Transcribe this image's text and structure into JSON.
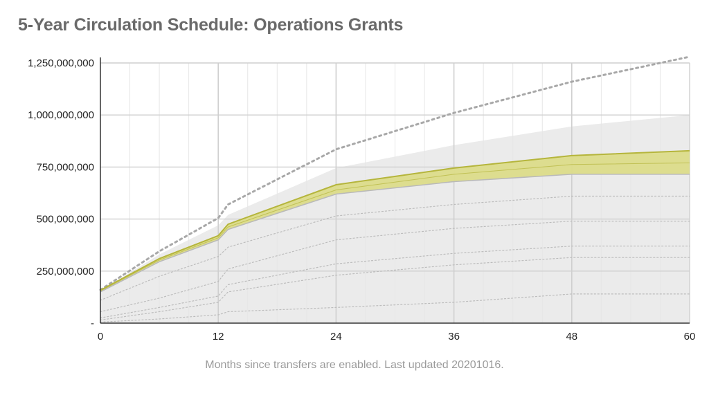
{
  "chart_data": {
    "type": "area",
    "title": "5-Year Circulation Schedule: Operations Grants",
    "xlabel": "Months since transfers are enabled. Last updated 20201016.",
    "ylabel": "",
    "xlim": [
      0,
      60
    ],
    "ylim": [
      0,
      1250000000
    ],
    "x_ticks": [
      0,
      12,
      24,
      36,
      48,
      60
    ],
    "x_tick_labels": [
      "0",
      "12",
      "24",
      "36",
      "48",
      "60"
    ],
    "y_ticks": [
      0,
      250000000,
      500000000,
      750000000,
      1000000000,
      1250000000
    ],
    "y_tick_labels": [
      "-",
      "250,000,000",
      "500,000,000",
      "750,000,000",
      "1,000,000,000",
      "1,250,000,000"
    ],
    "grid": true,
    "legend": "none",
    "colors": {
      "envelope_fill": "#ebebeb",
      "band_fill": "#dcdc8a",
      "band_line": "#b5b53c",
      "upper_dotted": "#a8a8a8",
      "inner_dotted": "#bcbcbc",
      "grid_major": "#cfcfcf",
      "grid_minor": "#e6e6e6"
    },
    "envelope": {
      "x": [
        0,
        6,
        12,
        13,
        24,
        36,
        48,
        60
      ],
      "lower": [
        0,
        0,
        0,
        0,
        0,
        0,
        0,
        0
      ],
      "upper": [
        155000000,
        330000000,
        470000000,
        520000000,
        745000000,
        855000000,
        945000000,
        1000000000
      ]
    },
    "band": {
      "x": [
        0,
        6,
        12,
        13,
        24,
        36,
        48,
        60
      ],
      "upper": [
        158000000,
        310000000,
        420000000,
        475000000,
        665000000,
        745000000,
        805000000,
        828000000
      ],
      "center": [
        155000000,
        303000000,
        410000000,
        462000000,
        640000000,
        715000000,
        762000000,
        770000000
      ],
      "lower": [
        150000000,
        295000000,
        400000000,
        450000000,
        620000000,
        680000000,
        715000000,
        715000000
      ]
    },
    "series": [
      {
        "x": [
          0,
          6,
          12,
          13,
          24,
          36,
          48,
          60
        ],
        "values": [
          160000000,
          345000000,
          505000000,
          570000000,
          835000000,
          1010000000,
          1160000000,
          1280000000
        ],
        "style": "dotted-upper"
      },
      {
        "x": [
          0,
          6,
          12,
          13,
          24,
          36,
          48,
          60
        ],
        "values": [
          110000000,
          225000000,
          320000000,
          365000000,
          515000000,
          570000000,
          610000000,
          610000000
        ],
        "style": "dotted"
      },
      {
        "x": [
          0,
          6,
          12,
          13,
          24,
          36,
          48,
          60
        ],
        "values": [
          55000000,
          120000000,
          200000000,
          260000000,
          400000000,
          455000000,
          490000000,
          490000000
        ],
        "style": "dotted"
      },
      {
        "x": [
          0,
          6,
          12,
          13,
          24,
          36,
          48,
          60
        ],
        "values": [
          25000000,
          75000000,
          130000000,
          185000000,
          285000000,
          335000000,
          370000000,
          370000000
        ],
        "style": "dotted"
      },
      {
        "x": [
          0,
          6,
          12,
          13,
          24,
          36,
          48,
          60
        ],
        "values": [
          15000000,
          55000000,
          100000000,
          150000000,
          230000000,
          280000000,
          315000000,
          315000000
        ],
        "style": "dotted"
      },
      {
        "x": [
          0,
          6,
          12,
          13,
          24,
          36,
          48,
          60
        ],
        "values": [
          5000000,
          20000000,
          40000000,
          55000000,
          75000000,
          100000000,
          140000000,
          140000000
        ],
        "style": "dotted"
      }
    ]
  }
}
